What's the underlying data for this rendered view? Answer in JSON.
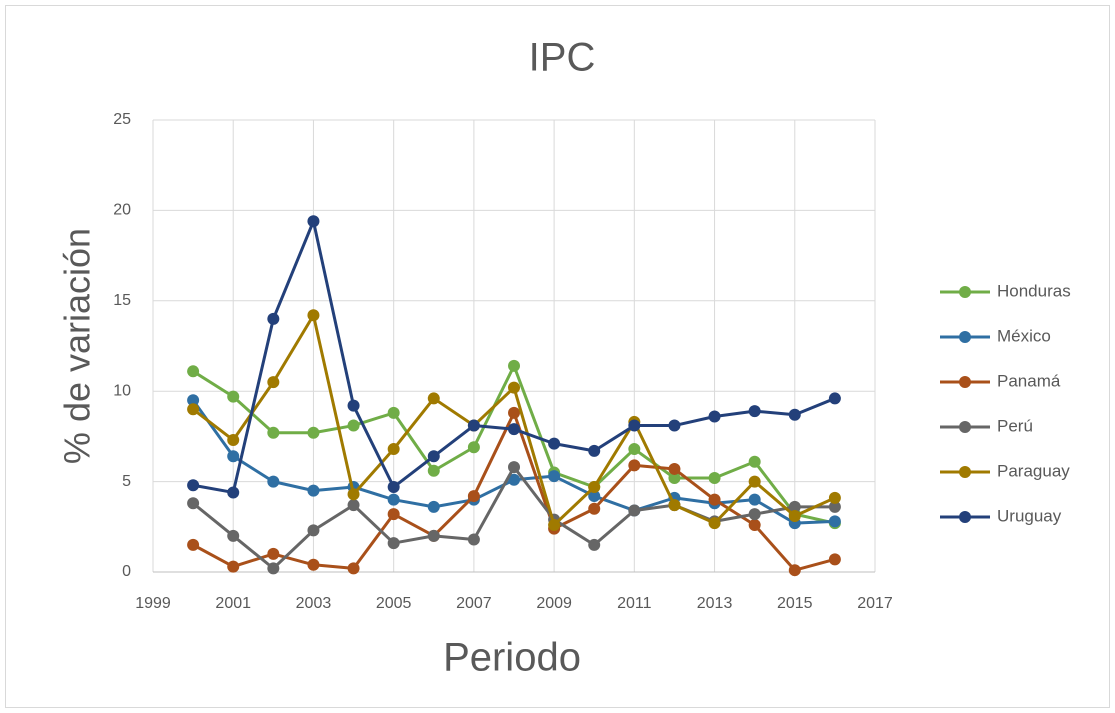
{
  "chart_data": {
    "type": "line",
    "title": "IPC",
    "x_label": "Periodo",
    "y_label": "% de variación",
    "x": [
      2000,
      2001,
      2002,
      2003,
      2004,
      2005,
      2006,
      2007,
      2008,
      2009,
      2010,
      2011,
      2012,
      2013,
      2014,
      2015,
      2016
    ],
    "series": [
      {
        "name": "Honduras",
        "color": "#70ad47",
        "values": [
          11.1,
          9.7,
          7.7,
          7.7,
          8.1,
          8.8,
          5.6,
          6.9,
          11.4,
          5.5,
          4.7,
          6.8,
          5.2,
          5.2,
          6.1,
          3.2,
          2.7
        ]
      },
      {
        "name": "México",
        "color": "#2f6fa3",
        "values": [
          9.5,
          6.4,
          5.0,
          4.5,
          4.7,
          4.0,
          3.6,
          4.0,
          5.1,
          5.3,
          4.2,
          3.4,
          4.1,
          3.8,
          4.0,
          2.7,
          2.8
        ]
      },
      {
        "name": "Panamá",
        "color": "#a9501a",
        "values": [
          1.5,
          0.3,
          1.0,
          0.4,
          0.2,
          3.2,
          2.0,
          4.2,
          8.8,
          2.4,
          3.5,
          5.9,
          5.7,
          4.0,
          2.6,
          0.1,
          0.7
        ]
      },
      {
        "name": "Perú",
        "color": "#666666",
        "values": [
          3.8,
          2.0,
          0.2,
          2.3,
          3.7,
          1.6,
          2.0,
          1.8,
          5.8,
          2.9,
          1.5,
          3.4,
          3.7,
          2.8,
          3.2,
          3.6,
          3.6
        ]
      },
      {
        "name": "Paraguay",
        "color": "#a07a00",
        "values": [
          9.0,
          7.3,
          10.5,
          14.2,
          4.3,
          6.8,
          9.6,
          8.1,
          10.2,
          2.6,
          4.7,
          8.3,
          3.7,
          2.7,
          5.0,
          3.1,
          4.1
        ]
      },
      {
        "name": "Uruguay",
        "color": "#23407a",
        "values": [
          4.8,
          4.4,
          14.0,
          19.4,
          9.2,
          4.7,
          6.4,
          8.1,
          7.9,
          7.1,
          6.7,
          8.1,
          8.1,
          8.6,
          8.9,
          8.7,
          9.6
        ]
      }
    ],
    "xlim": [
      1999,
      2017
    ],
    "xticks": [
      1999,
      2001,
      2003,
      2005,
      2007,
      2009,
      2011,
      2013,
      2015,
      2017
    ],
    "ylim": [
      0,
      25
    ],
    "yticks": [
      0,
      5,
      10,
      15,
      20,
      25
    ],
    "grid": true,
    "legend": "right"
  }
}
